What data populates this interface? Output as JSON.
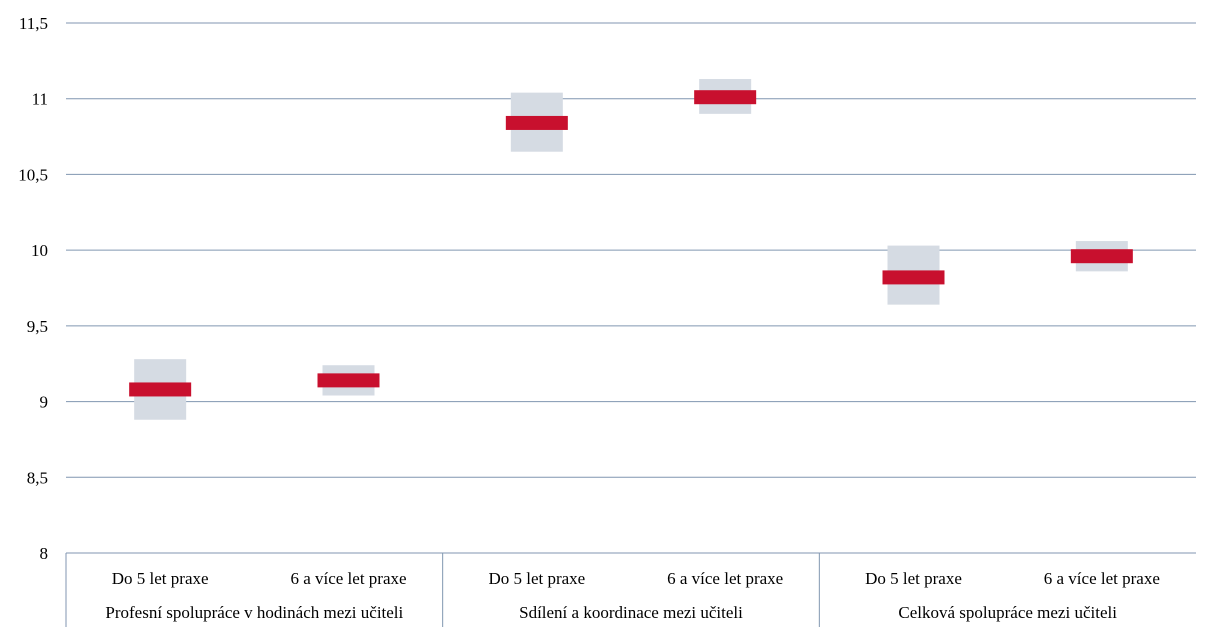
{
  "chart_data": {
    "type": "range-bar",
    "title": "",
    "xlabel": "",
    "ylabel": "",
    "ylim": [
      8,
      11.5
    ],
    "yticks": [
      "8",
      "8,5",
      "9",
      "9,5",
      "10",
      "10,5",
      "11",
      "11,5"
    ],
    "ytick_values": [
      8,
      8.5,
      9,
      9.5,
      10,
      10.5,
      11,
      11.5
    ],
    "grid": true,
    "groups": [
      {
        "name": "Profesní spolupráce v hodinách mezi učiteli",
        "categories": [
          {
            "label": "Do 5 let praxe",
            "mean": 9.08,
            "low": 8.88,
            "high": 9.28
          },
          {
            "label": "6 a více let praxe",
            "mean": 9.14,
            "low": 9.04,
            "high": 9.24
          }
        ]
      },
      {
        "name": "Sdílení a koordinace mezi učiteli",
        "categories": [
          {
            "label": "Do 5 let praxe",
            "mean": 10.84,
            "low": 10.65,
            "high": 11.04
          },
          {
            "label": "6 a více let praxe",
            "mean": 11.01,
            "low": 10.9,
            "high": 11.13
          }
        ]
      },
      {
        "name": "Celková spolupráce mezi učiteli",
        "categories": [
          {
            "label": "Do 5 let praxe",
            "mean": 9.82,
            "low": 9.64,
            "high": 10.03
          },
          {
            "label": "6 a více let praxe",
            "mean": 9.96,
            "low": 9.86,
            "high": 10.06
          }
        ]
      }
    ],
    "colors": {
      "mean_marker": "#c8102e",
      "interval": "#d5dbe3",
      "gridline": "#8096b0",
      "axis": "#8096b0"
    }
  }
}
